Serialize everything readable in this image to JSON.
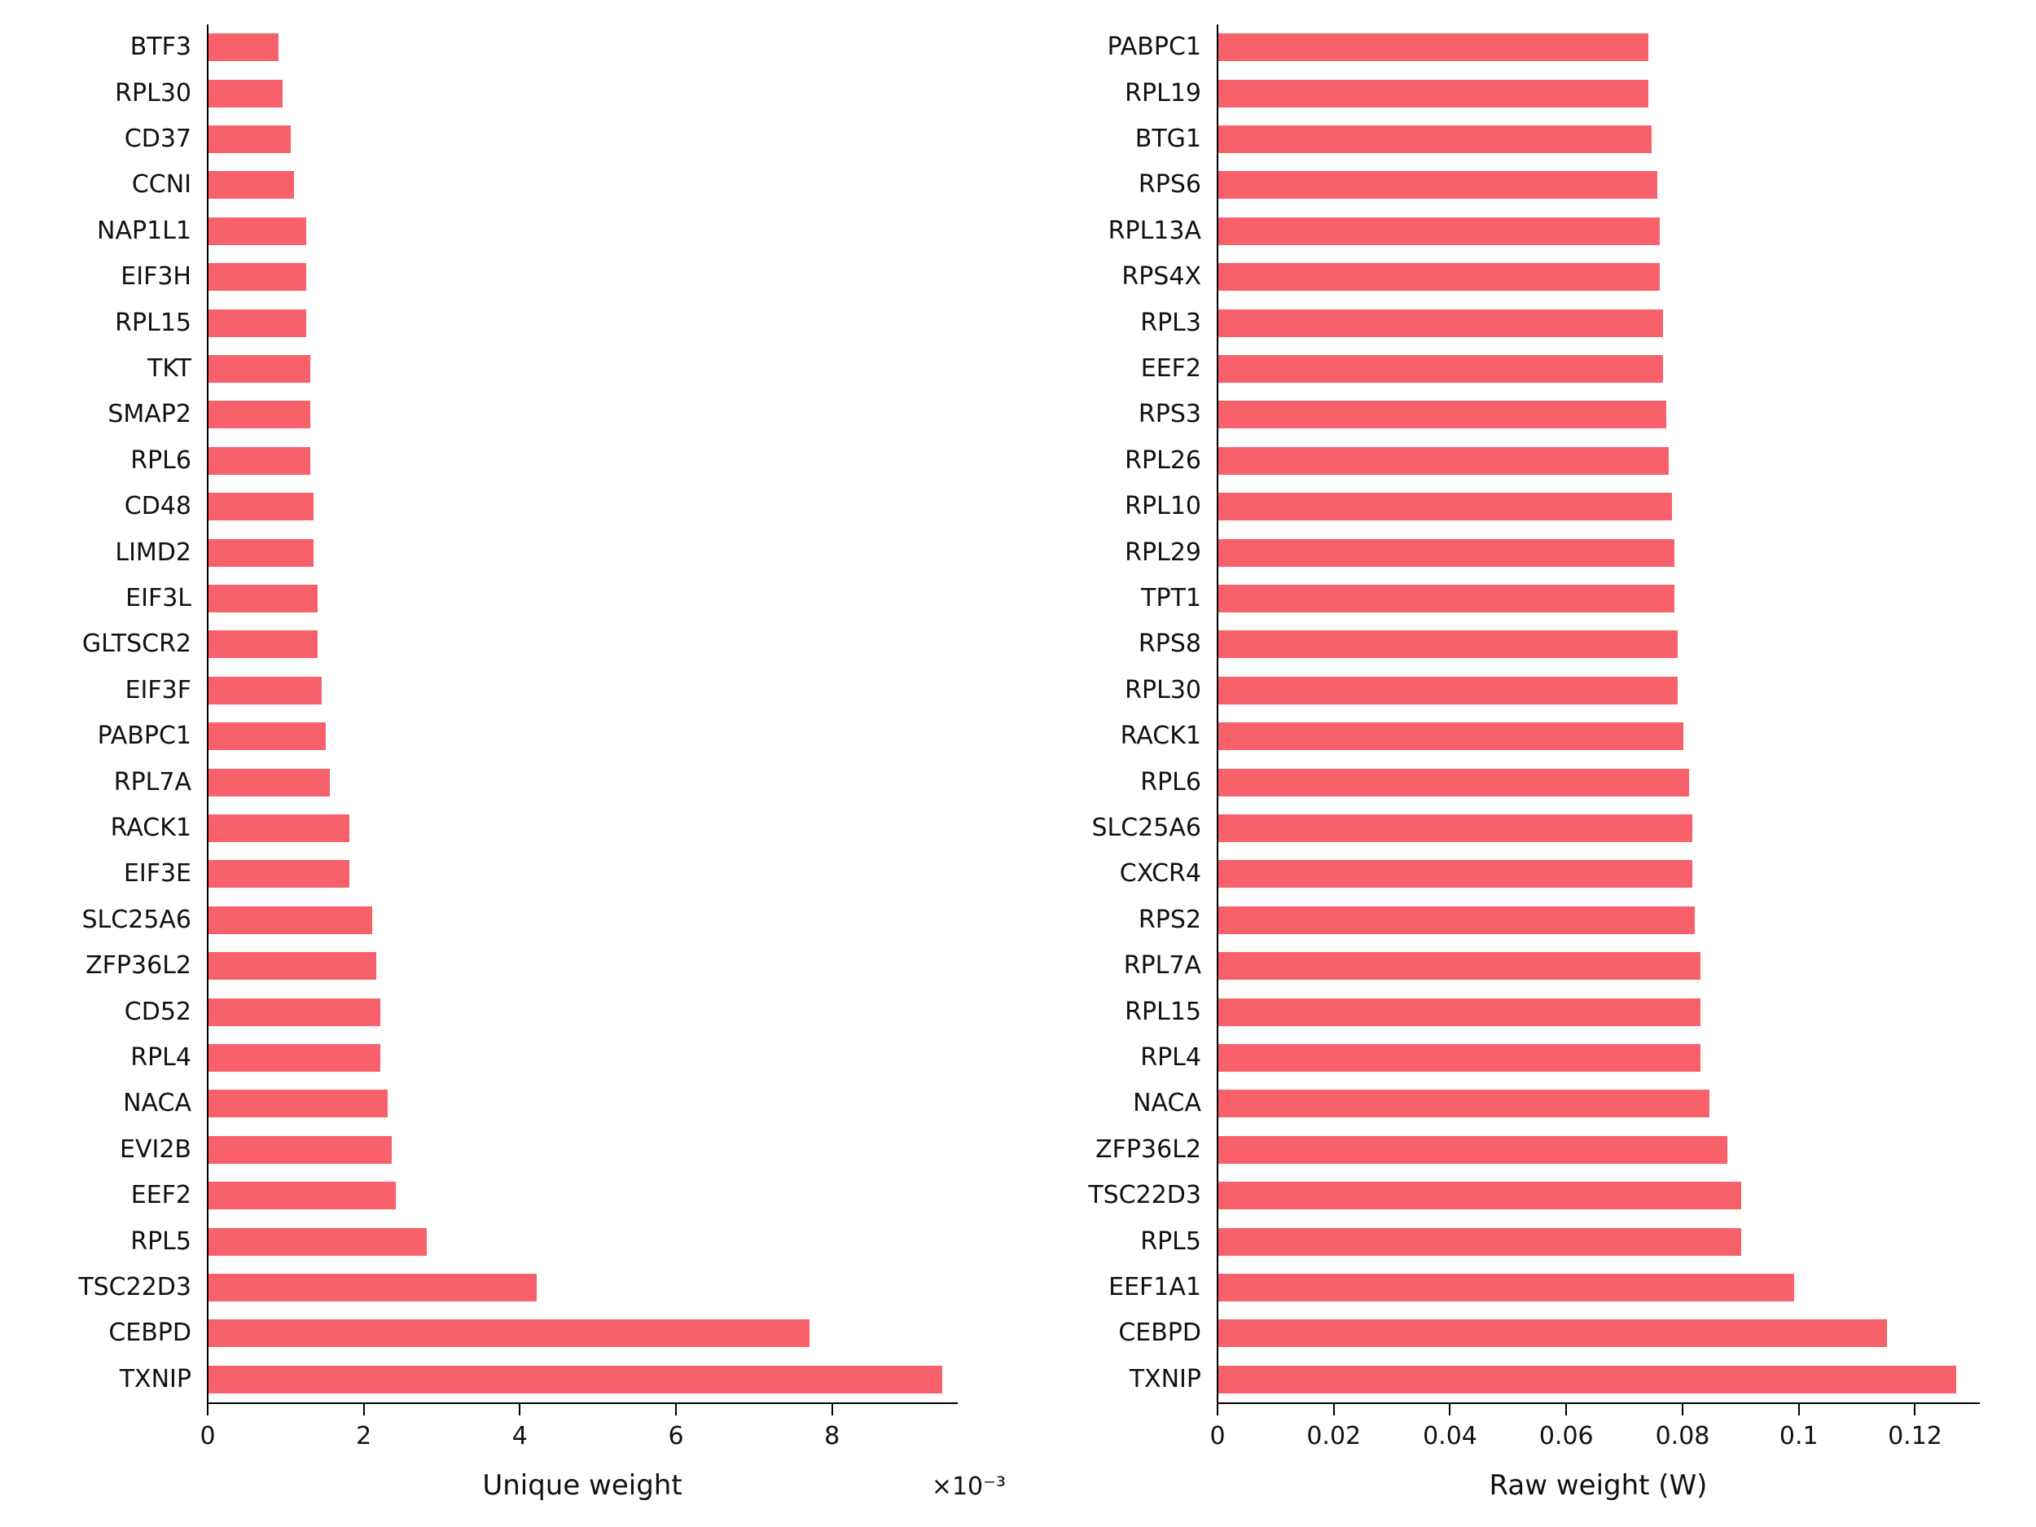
{
  "figure": {
    "background_color": "#ffffff",
    "bar_color": "#f8606a",
    "axis_color": "#000000",
    "text_color": "#111111"
  },
  "chart_data": [
    {
      "type": "bar",
      "orientation": "horizontal",
      "title": "",
      "xlabel": "Unique weight",
      "offset_text": "×10⁻³",
      "value_unit": "1e-3",
      "xlim": [
        0,
        9.6
      ],
      "xticks": [
        0,
        2,
        4,
        6,
        8
      ],
      "xtick_labels": [
        "0",
        "2",
        "4",
        "6",
        "8"
      ],
      "grid": false,
      "legend": "none",
      "bar_color": "#f8606a",
      "categories": [
        "BTF3",
        "RPL30",
        "CD37",
        "CCNI",
        "NAP1L1",
        "EIF3H",
        "RPL15",
        "TKT",
        "SMAP2",
        "RPL6",
        "CD48",
        "LIMD2",
        "EIF3L",
        "GLTSCR2",
        "EIF3F",
        "PABPC1",
        "RPL7A",
        "RACK1",
        "EIF3E",
        "SLC25A6",
        "ZFP36L2",
        "CD52",
        "RPL4",
        "NACA",
        "EVI2B",
        "EEF2",
        "RPL5",
        "TSC22D3",
        "CEBPD",
        "TXNIP"
      ],
      "values": [
        0.9,
        0.95,
        1.05,
        1.1,
        1.25,
        1.25,
        1.25,
        1.3,
        1.3,
        1.3,
        1.35,
        1.35,
        1.4,
        1.4,
        1.45,
        1.5,
        1.55,
        1.8,
        1.8,
        2.1,
        2.15,
        2.2,
        2.2,
        2.3,
        2.35,
        2.4,
        2.8,
        4.2,
        7.7,
        9.4
      ]
    },
    {
      "type": "bar",
      "orientation": "horizontal",
      "title": "",
      "xlabel": "Raw weight (W)",
      "offset_text": "",
      "value_unit": "1",
      "xlim": [
        0,
        0.131
      ],
      "xticks": [
        0,
        0.02,
        0.04,
        0.06,
        0.08,
        0.1,
        0.12
      ],
      "xtick_labels": [
        "0",
        "0.02",
        "0.04",
        "0.06",
        "0.08",
        "0.1",
        "0.12"
      ],
      "grid": false,
      "legend": "none",
      "bar_color": "#f8606a",
      "categories": [
        "PABPC1",
        "RPL19",
        "BTG1",
        "RPS6",
        "RPL13A",
        "RPS4X",
        "RPL3",
        "EEF2",
        "RPS3",
        "RPL26",
        "RPL10",
        "RPL29",
        "TPT1",
        "RPS8",
        "RPL30",
        "RACK1",
        "RPL6",
        "SLC25A6",
        "CXCR4",
        "RPS2",
        "RPL7A",
        "RPL15",
        "RPL4",
        "NACA",
        "ZFP36L2",
        "TSC22D3",
        "RPL5",
        "EEF1A1",
        "CEBPD",
        "TXNIP"
      ],
      "values": [
        0.074,
        0.074,
        0.0745,
        0.0755,
        0.076,
        0.076,
        0.0765,
        0.0765,
        0.077,
        0.0775,
        0.078,
        0.0785,
        0.0785,
        0.079,
        0.079,
        0.08,
        0.081,
        0.0815,
        0.0815,
        0.082,
        0.083,
        0.083,
        0.083,
        0.0845,
        0.0875,
        0.09,
        0.09,
        0.099,
        0.115,
        0.127
      ]
    }
  ]
}
